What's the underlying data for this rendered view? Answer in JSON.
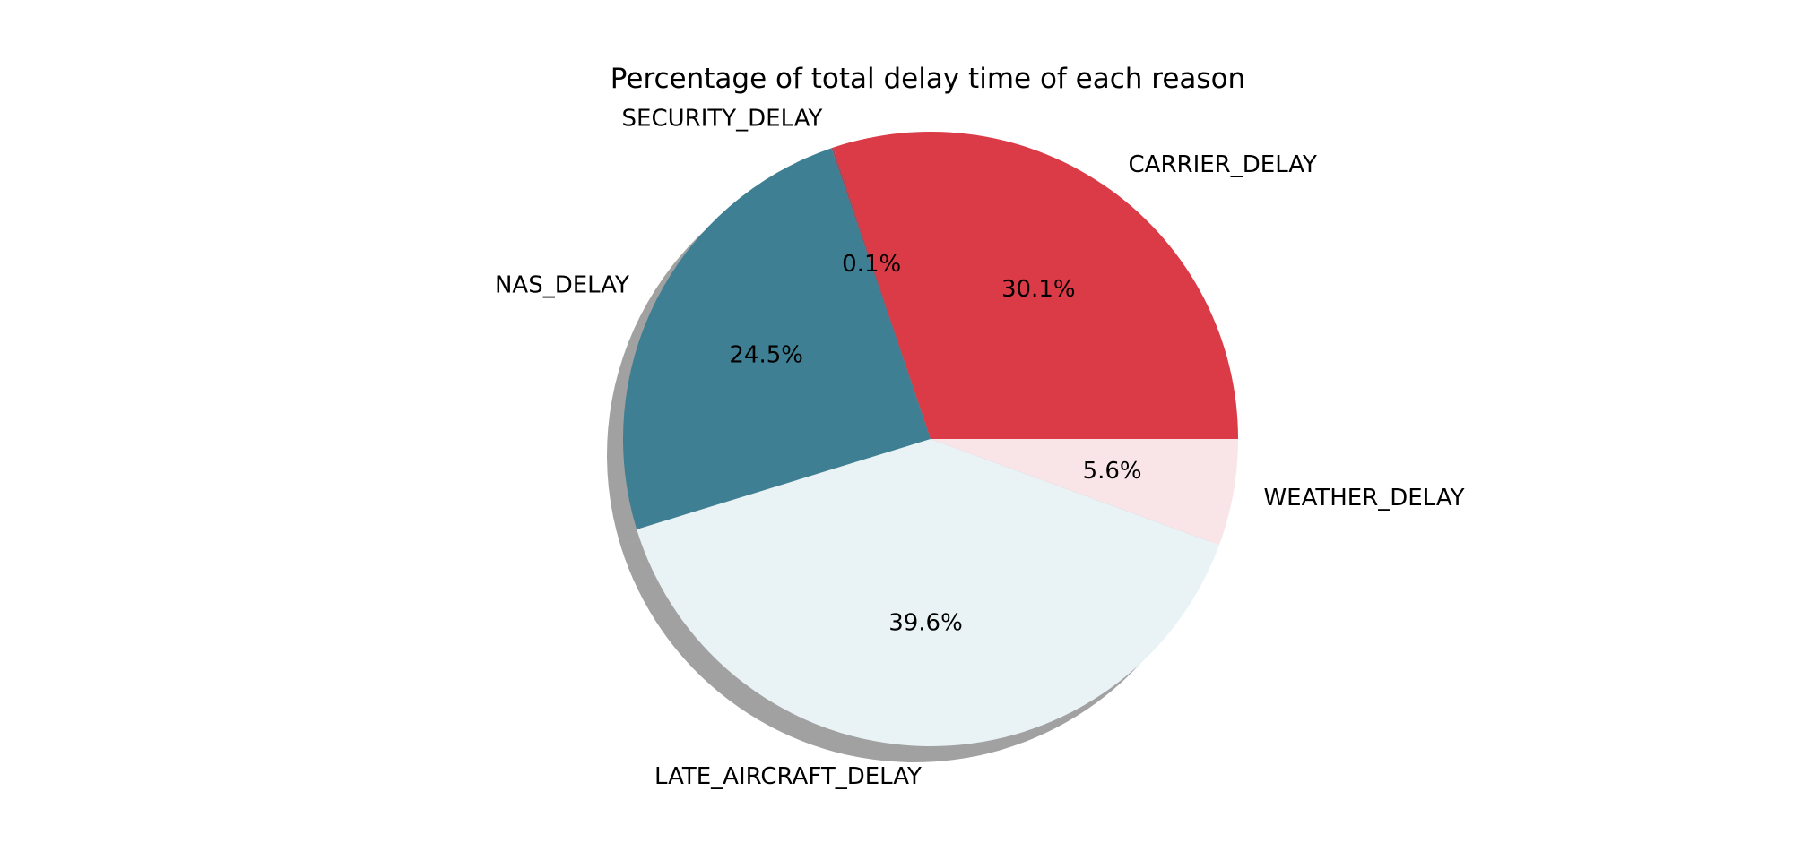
{
  "chart_data": {
    "type": "pie",
    "title": "Percentage of total delay time of each reason",
    "shadow": true,
    "slices": [
      {
        "label": "CARRIER_DELAY",
        "value": 30.1,
        "pct_label": "30.1%",
        "color": "#db3a47"
      },
      {
        "label": "SECURITY_DELAY",
        "value": 0.1,
        "pct_label": "0.1%",
        "color": "#a24a5a"
      },
      {
        "label": "NAS_DELAY",
        "value": 24.5,
        "pct_label": "24.5%",
        "color": "#3e7f94"
      },
      {
        "label": "LATE_AIRCRAFT_DELAY",
        "value": 39.6,
        "pct_label": "39.6%",
        "color": "#e9f3f5"
      },
      {
        "label": "WEATHER_DELAY",
        "value": 5.6,
        "pct_label": "5.6%",
        "color": "#f9e5e8"
      }
    ]
  }
}
